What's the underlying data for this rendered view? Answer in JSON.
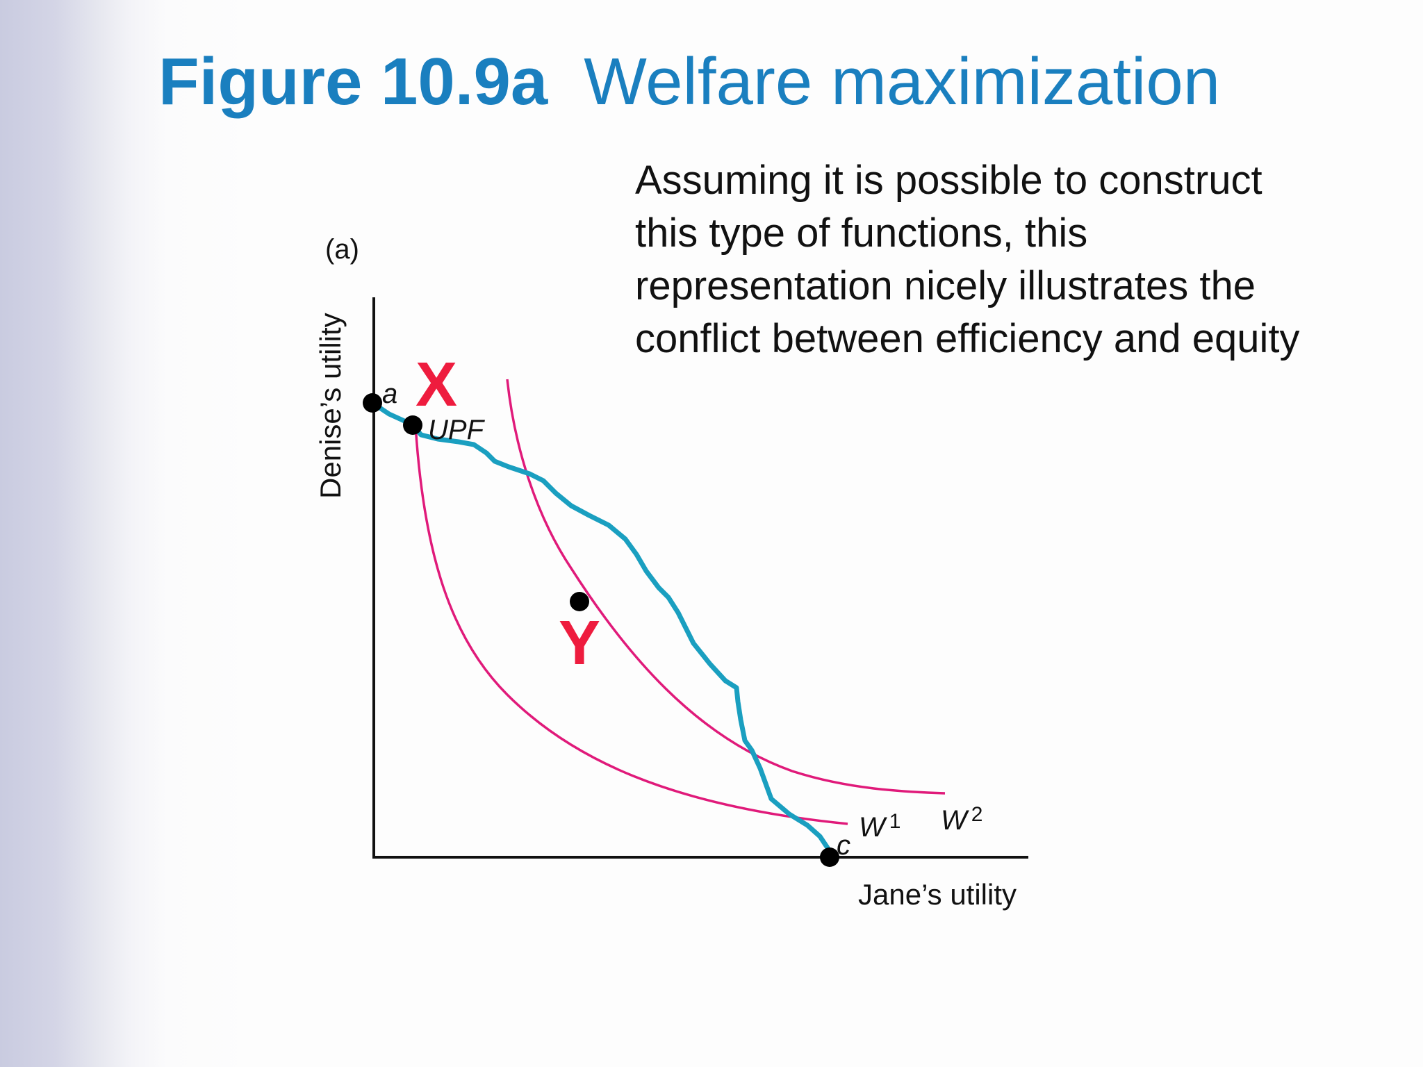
{
  "title": {
    "number": "Figure 10.9a",
    "text": "Welfare maximization"
  },
  "caption_lines": [
    "Assuming it is possible to construct",
    "this type of functions, this",
    "representation nicely illustrates the",
    "conflict between efficiency and equity"
  ],
  "diagram": {
    "panel_label": "(a)",
    "y_axis_label": "Denise’s utility",
    "x_axis_label": "Jane’s utility",
    "points": {
      "a": "a",
      "upf": "UPF",
      "c": "c"
    },
    "curves": {
      "w1": {
        "label": "W",
        "sup": "1"
      },
      "w2": {
        "label": "W",
        "sup": "2"
      }
    },
    "markers": {
      "x": "X",
      "y": "Y"
    },
    "colors": {
      "upf_curve": "#1a9fc0",
      "welfare_curves": "#e01a7a",
      "marker_text": "#ee1c3e",
      "title": "#1a7fbf"
    }
  }
}
